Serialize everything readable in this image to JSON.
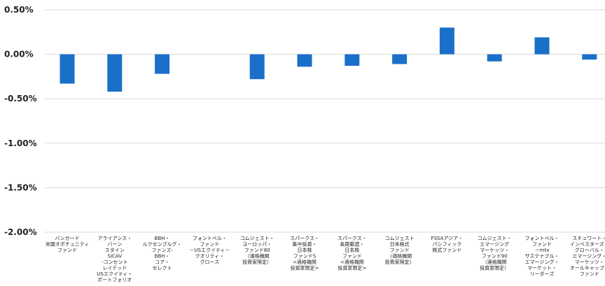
{
  "chart_data": {
    "type": "bar",
    "categories": [
      [
        "バンガード",
        "米国オポチュニティ",
        "ファンド"
      ],
      [
        "アライアンス・",
        "バーン",
        "スタイン",
        "SICAV",
        "-コンセント",
        "レイテッド",
        "USエクイティ・",
        "ポートフォリオ"
      ],
      [
        "BBH・",
        "ルクセンブルグ・",
        "ファンズ-",
        "BBH・",
        "コア・",
        "セレクト"
      ],
      [
        "フォントベル・",
        "ファンド",
        "－USエクイティ－",
        "クオリティ・",
        "グロース"
      ],
      [
        "コムジェスト・",
        "ヨーロッパ・",
        "ファンド80",
        "（適格機関",
        "投資家限定）"
      ],
      [
        "スパークス・",
        "集中投資・",
        "日本株",
        "ファンドS",
        "<適格機関",
        "投資家限定>"
      ],
      [
        "スパークス・",
        "長期厳選・",
        "日本株",
        "ファンド",
        "<適格機関",
        "投資家限定>"
      ],
      [
        "コムジェスト",
        "日本株式",
        "ファンド",
        "（適格機関",
        "投資家限定）"
      ],
      [
        "FSSAアジア・",
        "パシフィック",
        "株式ファンド"
      ],
      [
        "コムジェスト・",
        "エマージング",
        "マーケッツ・",
        "ファンド90",
        "（適格機関",
        "投資家限定）"
      ],
      [
        "フォントベル・",
        "ファンド",
        "－mtx",
        "サステナブル・",
        "エマージング・",
        "マーケット・",
        "リーダーズ"
      ],
      [
        "スチュワート・",
        "インベスターズ・",
        "グローバル・",
        "エマージング・",
        "マーケッツ・",
        "オールキャップ・",
        "ファンド"
      ]
    ],
    "values": [
      -0.33,
      -0.42,
      -0.22,
      0.0,
      -0.28,
      -0.14,
      -0.13,
      -0.11,
      0.3,
      -0.08,
      0.19,
      -0.06
    ],
    "yticks": [
      "0.50%",
      "0.00%",
      "-0.50%",
      "-1.00%",
      "-1.50%",
      "-2.00%"
    ],
    "ylim": [
      -2.0,
      0.5
    ],
    "grid": true,
    "colors": {
      "bar": "#1a6fc9",
      "grid": "#d9d9d9",
      "text": "#222222"
    }
  }
}
